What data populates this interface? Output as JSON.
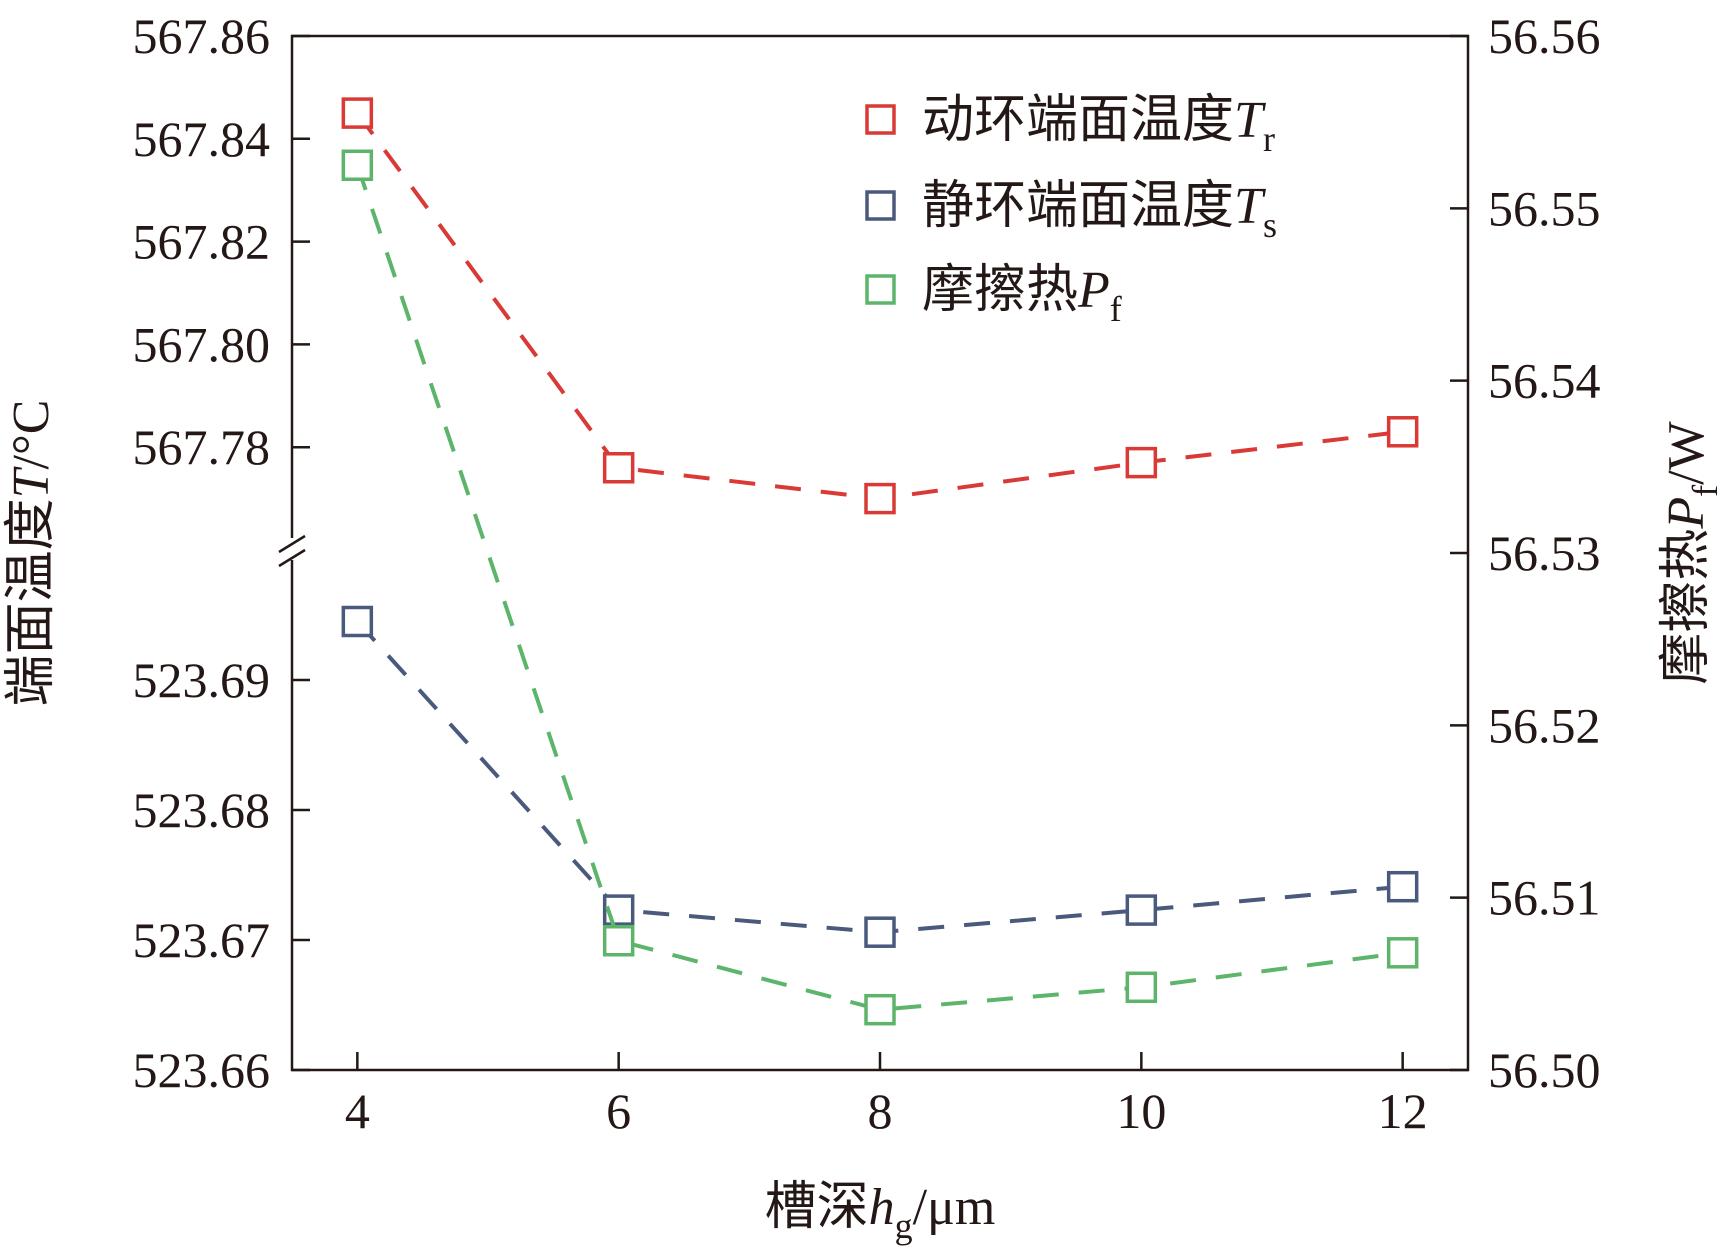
{
  "chart_data": {
    "type": "line",
    "x": [
      4,
      6,
      8,
      10,
      12
    ],
    "xlim": [
      3.5,
      12.5
    ],
    "x_ticks": [
      "4",
      "6",
      "8",
      "10",
      "12"
    ],
    "xlabel": {
      "main": "槽深",
      "var": "h",
      "sub": "g",
      "unit": "/μm"
    },
    "ylabel_left": {
      "main": "端面温度",
      "var": "T",
      "unit": "/°C"
    },
    "ylabel_right": {
      "main": "摩擦热",
      "var": "P",
      "sub": "f",
      "unit": "/W"
    },
    "left_axis_upper": {
      "range": [
        567.76,
        567.86
      ],
      "ticks": [
        "567.78",
        "567.80",
        "567.82",
        "567.84",
        "567.86"
      ],
      "tick_values": [
        567.78,
        567.8,
        567.82,
        567.84,
        567.86
      ]
    },
    "left_axis_lower": {
      "range": [
        523.66,
        523.7
      ],
      "ticks": [
        "523.66",
        "523.67",
        "523.68",
        "523.69"
      ],
      "tick_values": [
        523.66,
        523.67,
        523.68,
        523.69
      ]
    },
    "right_axis": {
      "range": [
        56.5,
        56.56
      ],
      "ticks": [
        "56.50",
        "56.51",
        "56.52",
        "56.53",
        "56.54",
        "56.55",
        "56.56"
      ],
      "tick_values": [
        56.5,
        56.51,
        56.52,
        56.53,
        56.54,
        56.55,
        56.56
      ]
    },
    "series": [
      {
        "name": "动环端面温度",
        "var": "T",
        "sub": "r",
        "axis": "left_upper",
        "color": "#d93a36",
        "values": [
          567.845,
          567.776,
          567.77,
          567.777,
          567.783
        ]
      },
      {
        "name": "静环端面温度",
        "var": "T",
        "sub": "s",
        "axis": "left_lower",
        "color": "#4a5a7c",
        "values": [
          523.6945,
          523.6723,
          523.6706,
          523.6723,
          523.6741
        ]
      },
      {
        "name": "摩擦热",
        "var": "P",
        "sub": "f",
        "axis": "right",
        "color": "#5cb56a",
        "values": [
          56.5525,
          56.5075,
          56.5035,
          56.5048,
          56.5068
        ]
      }
    ],
    "legend_position": "top-right"
  }
}
